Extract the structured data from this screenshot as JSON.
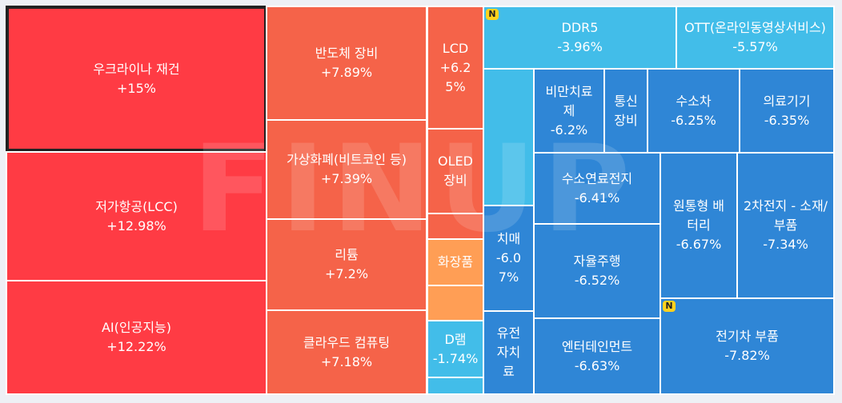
{
  "watermark": "FINUP",
  "tiles": [
    {
      "id": "ukraine-reconstruction",
      "label": "우크라이나 재건",
      "change": "+15%",
      "color": "#ff3b44",
      "selected": true
    },
    {
      "id": "lcc",
      "label": "저가항공(LCC)",
      "change": "+12.98%",
      "color": "#ff3b44"
    },
    {
      "id": "ai",
      "label": "AI(인공지능)",
      "change": "+12.22%",
      "color": "#ff3b44"
    },
    {
      "id": "semiconductor-equipment",
      "label": "반도체 장비",
      "change": "+7.89%",
      "color": "#f56349"
    },
    {
      "id": "crypto",
      "label": "가상화폐(비트코인 등)",
      "change": "+7.39%",
      "color": "#f56349"
    },
    {
      "id": "lithium",
      "label": "리튬",
      "change": "+7.2%",
      "color": "#f56349"
    },
    {
      "id": "cloud-computing",
      "label": "클라우드 컴퓨팅",
      "change": "+7.18%",
      "color": "#f56349"
    },
    {
      "id": "lcd",
      "label": "LCD",
      "change": "+6.2\n5%",
      "color": "#f56349"
    },
    {
      "id": "oled-equipment",
      "label": "OLED\n장비",
      "change": "",
      "color": "#f56349"
    },
    {
      "id": "blank-1",
      "label": "",
      "change": "",
      "color": "#f56349"
    },
    {
      "id": "cosmetics",
      "label": "화장품",
      "change": "",
      "color": "#ff9e55"
    },
    {
      "id": "blank-2",
      "label": "",
      "change": "",
      "color": "#ff9e55"
    },
    {
      "id": "dram",
      "label": "D램",
      "change": "-1.74%",
      "color": "#42bde9"
    },
    {
      "id": "blank-3",
      "label": "",
      "change": "",
      "color": "#42bde9"
    },
    {
      "id": "ddr5",
      "label": "DDR5",
      "change": "-3.96%",
      "color": "#42bde9",
      "badge": "N"
    },
    {
      "id": "ott",
      "label": "OTT(온라인동영상서비스)",
      "change": "-5.57%",
      "color": "#42bde9"
    },
    {
      "id": "blank-4",
      "label": "",
      "change": "",
      "color": "#42bde9"
    },
    {
      "id": "obesity-treatment",
      "label": "비만치료\n제",
      "change": "-6.2%",
      "color": "#2f86d6"
    },
    {
      "id": "telecom-equipment",
      "label": "통신\n장비",
      "change": "",
      "color": "#2f86d6"
    },
    {
      "id": "hydrogen-car",
      "label": "수소차",
      "change": "-6.25%",
      "color": "#2f86d6"
    },
    {
      "id": "medical-devices",
      "label": "의료기기",
      "change": "-6.35%",
      "color": "#2f86d6"
    },
    {
      "id": "fuel-cell",
      "label": "수소연료전지",
      "change": "-6.41%",
      "color": "#2f86d6"
    },
    {
      "id": "cylindrical-battery",
      "label": "원통형 배\n터리",
      "change": "-6.67%",
      "color": "#2f86d6"
    },
    {
      "id": "secondary-battery-materials",
      "label": "2차전지 - 소재/\n부품",
      "change": "-7.34%",
      "color": "#2f86d6"
    },
    {
      "id": "dementia",
      "label": "치매",
      "change": "-6.0\n7%",
      "color": "#2f86d6"
    },
    {
      "id": "autonomous-driving",
      "label": "자율주행",
      "change": "-6.52%",
      "color": "#2f86d6"
    },
    {
      "id": "genetic-treatment",
      "label": "유전\n자치\n료",
      "change": "",
      "color": "#2f86d6"
    },
    {
      "id": "entertainment",
      "label": "엔터테인먼트",
      "change": "-6.63%",
      "color": "#2f86d6"
    },
    {
      "id": "ev-parts",
      "label": "전기차 부품",
      "change": "-7.82%",
      "color": "#2f86d6",
      "badge": "N"
    }
  ]
}
